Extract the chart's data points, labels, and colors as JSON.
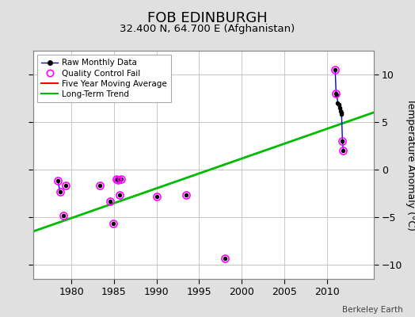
{
  "title": "FOB EDINBURGH",
  "subtitle": "32.400 N, 64.700 E (Afghanistan)",
  "ylabel": "Temperature Anomaly (°C)",
  "watermark": "Berkeley Earth",
  "xlim": [
    1975.5,
    2015.5
  ],
  "ylim": [
    -11.5,
    12.5
  ],
  "yticks": [
    -10,
    -5,
    0,
    5,
    10
  ],
  "xticks": [
    1980,
    1985,
    1990,
    1995,
    2000,
    2005,
    2010
  ],
  "bg_color": "#e0e0e0",
  "plot_bg_color": "#ffffff",
  "grid_color": "#c8c8c8",
  "raw_data_groups": [
    [
      [
        1978.4,
        1978.65
      ],
      [
        -1.2,
        -2.3
      ]
    ],
    [
      [
        2011.0,
        2011.1,
        2011.2,
        2011.3,
        2011.4,
        2011.5,
        2011.6,
        2011.7,
        2011.75,
        2011.85,
        2011.95
      ],
      [
        10.5,
        8.0,
        7.8,
        7.0,
        6.8,
        6.5,
        6.2,
        6.0,
        5.8,
        3.0,
        2.0
      ]
    ]
  ],
  "isolated_raw": [
    [
      1979.0,
      -4.8
    ],
    [
      1979.3,
      -1.7
    ],
    [
      1983.3,
      -1.7
    ],
    [
      1984.5,
      -3.3
    ],
    [
      1984.9,
      -5.7
    ],
    [
      1985.3,
      -1.0
    ],
    [
      1985.5,
      -1.1
    ],
    [
      1985.7,
      -2.7
    ],
    [
      1985.85,
      -1.0
    ],
    [
      1990.0,
      -2.8
    ],
    [
      1993.5,
      -2.7
    ],
    [
      1998.0,
      -9.3
    ]
  ],
  "qc_fail_points": [
    [
      1978.4,
      -1.2
    ],
    [
      1978.65,
      -2.3
    ],
    [
      1979.0,
      -4.8
    ],
    [
      1979.3,
      -1.7
    ],
    [
      1983.3,
      -1.7
    ],
    [
      1984.5,
      -3.3
    ],
    [
      1984.9,
      -5.7
    ],
    [
      1985.3,
      -1.0
    ],
    [
      1985.5,
      -1.1
    ],
    [
      1985.7,
      -2.7
    ],
    [
      1985.85,
      -1.0
    ],
    [
      1990.0,
      -2.8
    ],
    [
      1993.5,
      -2.7
    ],
    [
      1998.0,
      -9.3
    ],
    [
      2011.0,
      10.5
    ],
    [
      2011.1,
      8.0
    ],
    [
      2011.85,
      3.0
    ],
    [
      2011.95,
      2.0
    ]
  ],
  "trend_line": {
    "x": [
      1975.5,
      2015.5
    ],
    "y": [
      -6.5,
      6.0
    ],
    "color": "#00bb00",
    "linewidth": 2.0
  },
  "raw_line_color": "#0000ff",
  "raw_dot_color": "#000000",
  "qc_color": "#ff00ff",
  "title_fontsize": 13,
  "subtitle_fontsize": 9.5,
  "ylabel_fontsize": 9,
  "tick_fontsize": 9
}
